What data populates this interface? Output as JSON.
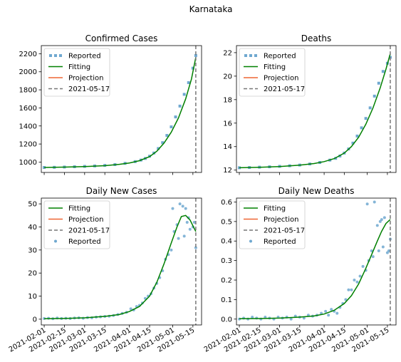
{
  "figure": {
    "suptitle": "Karnataka"
  },
  "colors": {
    "reported": "#6fa8d0",
    "fitting": "#008000",
    "projection": "#ee6633",
    "date_line": "#777777"
  },
  "chart_data": [
    {
      "type": "line",
      "title": "Confirmed Cases",
      "xlabel": "",
      "ylabel": "",
      "x_type": "date",
      "x_range": [
        "2021-01-30",
        "2021-05-21"
      ],
      "x_ticks": [
        "2021-02-01",
        "2021-02-15",
        "2021-03-01",
        "2021-03-15",
        "2021-04-01",
        "2021-04-15",
        "2021-05-01",
        "2021-05-15"
      ],
      "show_x_tick_labels": false,
      "ylim": [
        885,
        2290
      ],
      "y_ticks": [
        1000,
        1200,
        1400,
        1600,
        1800,
        2000,
        2200
      ],
      "y_tick_labels": [
        "1000",
        "1200",
        "1400",
        "1600",
        "1800",
        "2000",
        "2200"
      ],
      "grid": false,
      "legend": {
        "position": "upper-left",
        "entries": [
          "Reported",
          "Fitting",
          "Projection",
          "2021-05-17"
        ]
      },
      "vline": {
        "x": "2021-05-17",
        "label": "2021-05-17"
      },
      "series": [
        {
          "name": "Reported",
          "style": "square-dots",
          "x": [
            "2021-02-01",
            "2021-02-08",
            "2021-02-15",
            "2021-02-22",
            "2021-03-01",
            "2021-03-08",
            "2021-03-15",
            "2021-03-22",
            "2021-03-29",
            "2021-04-05",
            "2021-04-09",
            "2021-04-12",
            "2021-04-15",
            "2021-04-18",
            "2021-04-21",
            "2021-04-24",
            "2021-04-27",
            "2021-04-30",
            "2021-05-03",
            "2021-05-06",
            "2021-05-09",
            "2021-05-12",
            "2021-05-15",
            "2021-05-17"
          ],
          "y": [
            940,
            942,
            945,
            948,
            952,
            957,
            963,
            972,
            986,
            1005,
            1022,
            1040,
            1065,
            1100,
            1150,
            1215,
            1295,
            1390,
            1500,
            1620,
            1750,
            1880,
            2040,
            2180
          ]
        },
        {
          "name": "Fitting",
          "style": "line",
          "x": [
            "2021-02-01",
            "2021-02-15",
            "2021-03-01",
            "2021-03-15",
            "2021-03-25",
            "2021-04-01",
            "2021-04-08",
            "2021-04-15",
            "2021-04-20",
            "2021-04-25",
            "2021-04-30",
            "2021-05-05",
            "2021-05-10",
            "2021-05-14",
            "2021-05-17"
          ],
          "y": [
            940,
            944,
            950,
            960,
            975,
            990,
            1015,
            1060,
            1120,
            1210,
            1330,
            1490,
            1700,
            1920,
            2160
          ]
        }
      ]
    },
    {
      "type": "line",
      "title": "Deaths",
      "xlabel": "",
      "ylabel": "",
      "x_type": "date",
      "x_range": [
        "2021-01-30",
        "2021-05-21"
      ],
      "x_ticks": [
        "2021-02-01",
        "2021-02-15",
        "2021-03-01",
        "2021-03-15",
        "2021-04-01",
        "2021-04-15",
        "2021-05-01",
        "2021-05-15"
      ],
      "show_x_tick_labels": false,
      "ylim": [
        11.8,
        22.6
      ],
      "y_ticks": [
        12,
        14,
        16,
        18,
        20,
        22
      ],
      "y_tick_labels": [
        "12",
        "14",
        "16",
        "18",
        "20",
        "22"
      ],
      "grid": false,
      "legend": {
        "position": "upper-left",
        "entries": [
          "Reported",
          "Fitting",
          "Projection",
          "2021-05-17"
        ]
      },
      "vline": {
        "x": "2021-05-17",
        "label": "2021-05-17"
      },
      "series": [
        {
          "name": "Reported",
          "style": "square-dots",
          "x": [
            "2021-02-01",
            "2021-02-08",
            "2021-02-15",
            "2021-02-22",
            "2021-03-01",
            "2021-03-08",
            "2021-03-15",
            "2021-03-22",
            "2021-03-29",
            "2021-04-05",
            "2021-04-09",
            "2021-04-12",
            "2021-04-15",
            "2021-04-18",
            "2021-04-21",
            "2021-04-24",
            "2021-04-27",
            "2021-04-30",
            "2021-05-03",
            "2021-05-06",
            "2021-05-09",
            "2021-05-12",
            "2021-05-15",
            "2021-05-17"
          ],
          "y": [
            12.2,
            12.22,
            12.25,
            12.28,
            12.32,
            12.37,
            12.43,
            12.52,
            12.65,
            12.85,
            13.0,
            13.2,
            13.45,
            13.8,
            14.3,
            14.9,
            15.6,
            16.4,
            17.3,
            18.3,
            19.4,
            20.4,
            21.1,
            21.6
          ]
        },
        {
          "name": "Fitting",
          "style": "line",
          "x": [
            "2021-02-01",
            "2021-02-15",
            "2021-03-01",
            "2021-03-15",
            "2021-03-25",
            "2021-04-01",
            "2021-04-08",
            "2021-04-15",
            "2021-04-20",
            "2021-04-25",
            "2021-04-30",
            "2021-05-05",
            "2021-05-10",
            "2021-05-14",
            "2021-05-17"
          ],
          "y": [
            12.2,
            12.24,
            12.3,
            12.42,
            12.56,
            12.72,
            12.98,
            13.45,
            14.0,
            14.8,
            15.9,
            17.3,
            19.0,
            20.6,
            21.9
          ]
        }
      ]
    },
    {
      "type": "line",
      "title": "Daily New Cases",
      "xlabel": "",
      "ylabel": "",
      "x_type": "date",
      "x_range": [
        "2021-01-30",
        "2021-05-21"
      ],
      "x_ticks": [
        "2021-02-01",
        "2021-02-15",
        "2021-03-01",
        "2021-03-15",
        "2021-04-01",
        "2021-04-15",
        "2021-05-01",
        "2021-05-15"
      ],
      "show_x_tick_labels": true,
      "ylim": [
        -2.5,
        52.5
      ],
      "y_ticks": [
        0,
        10,
        20,
        30,
        40,
        50
      ],
      "y_tick_labels": [
        "0",
        "10",
        "20",
        "30",
        "40",
        "50"
      ],
      "grid": false,
      "legend": {
        "position": "upper-left",
        "entries": [
          "Fitting",
          "Projection",
          "2021-05-17",
          "Reported"
        ]
      },
      "vline": {
        "x": "2021-05-17",
        "label": "2021-05-17"
      },
      "series": [
        {
          "name": "Reported",
          "style": "dots",
          "x": [
            "2021-02-01",
            "2021-02-04",
            "2021-02-07",
            "2021-02-10",
            "2021-02-13",
            "2021-02-16",
            "2021-02-19",
            "2021-02-22",
            "2021-02-25",
            "2021-02-28",
            "2021-03-03",
            "2021-03-06",
            "2021-03-09",
            "2021-03-12",
            "2021-03-15",
            "2021-03-18",
            "2021-03-21",
            "2021-03-24",
            "2021-03-27",
            "2021-03-30",
            "2021-04-02",
            "2021-04-04",
            "2021-04-06",
            "2021-04-08",
            "2021-04-10",
            "2021-04-12",
            "2021-04-14",
            "2021-04-16",
            "2021-04-18",
            "2021-04-20",
            "2021-04-22",
            "2021-04-24",
            "2021-04-26",
            "2021-04-28",
            "2021-04-30",
            "2021-05-01",
            "2021-05-02",
            "2021-05-04",
            "2021-05-05",
            "2021-05-06",
            "2021-05-08",
            "2021-05-09",
            "2021-05-10",
            "2021-05-11",
            "2021-05-12",
            "2021-05-13",
            "2021-05-15",
            "2021-05-16",
            "2021-05-17"
          ],
          "y": [
            0.3,
            0.4,
            0.2,
            0.5,
            0.3,
            0.4,
            0.3,
            0.5,
            0.6,
            0.4,
            0.7,
            0.6,
            0.9,
            1.0,
            1.2,
            1.3,
            1.6,
            2.0,
            2.5,
            3.0,
            4.5,
            4.0,
            5.5,
            6.0,
            7.0,
            9.0,
            10.0,
            11.0,
            13.5,
            15.5,
            18.0,
            21.0,
            26.0,
            28.0,
            30.0,
            48.0,
            38.0,
            41.0,
            35.0,
            50.0,
            49.0,
            36.0,
            48.0,
            42.0,
            44.0,
            39.0,
            40.0,
            42.0,
            31.0
          ]
        },
        {
          "name": "Fitting",
          "style": "line",
          "x": [
            "2021-02-01",
            "2021-02-15",
            "2021-03-01",
            "2021-03-15",
            "2021-03-25",
            "2021-04-01",
            "2021-04-08",
            "2021-04-15",
            "2021-04-20",
            "2021-04-25",
            "2021-04-30",
            "2021-05-04",
            "2021-05-07",
            "2021-05-10",
            "2021-05-13",
            "2021-05-17"
          ],
          "y": [
            0.2,
            0.3,
            0.6,
            1.2,
            2.0,
            3.3,
            5.5,
            10.0,
            16.0,
            24.0,
            33.0,
            40.0,
            44.5,
            45.0,
            43.0,
            38.0
          ]
        }
      ]
    },
    {
      "type": "line",
      "title": "Daily New Deaths",
      "xlabel": "",
      "ylabel": "",
      "x_type": "date",
      "x_range": [
        "2021-01-30",
        "2021-05-21"
      ],
      "x_ticks": [
        "2021-02-01",
        "2021-02-15",
        "2021-03-01",
        "2021-03-15",
        "2021-04-01",
        "2021-04-15",
        "2021-05-01",
        "2021-05-15"
      ],
      "show_x_tick_labels": true,
      "ylim": [
        -0.03,
        0.62
      ],
      "y_ticks": [
        0.0,
        0.1,
        0.2,
        0.3,
        0.4,
        0.5,
        0.6
      ],
      "y_tick_labels": [
        "0.0",
        "0.1",
        "0.2",
        "0.3",
        "0.4",
        "0.5",
        "0.6"
      ],
      "grid": false,
      "legend": {
        "position": "upper-left",
        "entries": [
          "Fitting",
          "Projection",
          "2021-05-17",
          "Reported"
        ]
      },
      "vline": {
        "x": "2021-05-17",
        "label": "2021-05-17"
      },
      "series": [
        {
          "name": "Reported",
          "style": "dots",
          "x": [
            "2021-02-01",
            "2021-02-04",
            "2021-02-07",
            "2021-02-10",
            "2021-02-13",
            "2021-02-16",
            "2021-02-19",
            "2021-02-22",
            "2021-02-25",
            "2021-02-28",
            "2021-03-03",
            "2021-03-06",
            "2021-03-09",
            "2021-03-12",
            "2021-03-15",
            "2021-03-18",
            "2021-03-21",
            "2021-03-24",
            "2021-03-27",
            "2021-03-30",
            "2021-04-02",
            "2021-04-04",
            "2021-04-06",
            "2021-04-08",
            "2021-04-10",
            "2021-04-12",
            "2021-04-14",
            "2021-04-16",
            "2021-04-18",
            "2021-04-20",
            "2021-04-22",
            "2021-04-24",
            "2021-04-26",
            "2021-04-28",
            "2021-04-30",
            "2021-05-01",
            "2021-05-02",
            "2021-05-04",
            "2021-05-05",
            "2021-05-06",
            "2021-05-08",
            "2021-05-09",
            "2021-05-10",
            "2021-05-11",
            "2021-05-12",
            "2021-05-13",
            "2021-05-15",
            "2021-05-16",
            "2021-05-17"
          ],
          "y": [
            0.0,
            0.005,
            0.0,
            0.01,
            0.005,
            0.0,
            0.01,
            0.005,
            0.0,
            0.01,
            0.005,
            0.01,
            0.0,
            0.015,
            0.01,
            0.005,
            0.02,
            0.015,
            0.02,
            0.03,
            0.04,
            0.02,
            0.05,
            0.04,
            0.03,
            0.06,
            0.08,
            0.1,
            0.15,
            0.15,
            0.2,
            0.19,
            0.22,
            0.27,
            0.25,
            0.59,
            0.3,
            0.35,
            0.32,
            0.6,
            0.48,
            0.35,
            0.5,
            0.51,
            0.37,
            0.52,
            0.34,
            0.35,
            0.41
          ]
        },
        {
          "name": "Fitting",
          "style": "line",
          "x": [
            "2021-02-01",
            "2021-02-15",
            "2021-03-01",
            "2021-03-15",
            "2021-03-25",
            "2021-04-01",
            "2021-04-08",
            "2021-04-15",
            "2021-04-20",
            "2021-04-25",
            "2021-04-30",
            "2021-05-04",
            "2021-05-08",
            "2021-05-11",
            "2021-05-14",
            "2021-05-17"
          ],
          "y": [
            0.002,
            0.003,
            0.005,
            0.01,
            0.016,
            0.026,
            0.045,
            0.08,
            0.12,
            0.18,
            0.26,
            0.33,
            0.4,
            0.45,
            0.49,
            0.51
          ]
        }
      ]
    }
  ]
}
